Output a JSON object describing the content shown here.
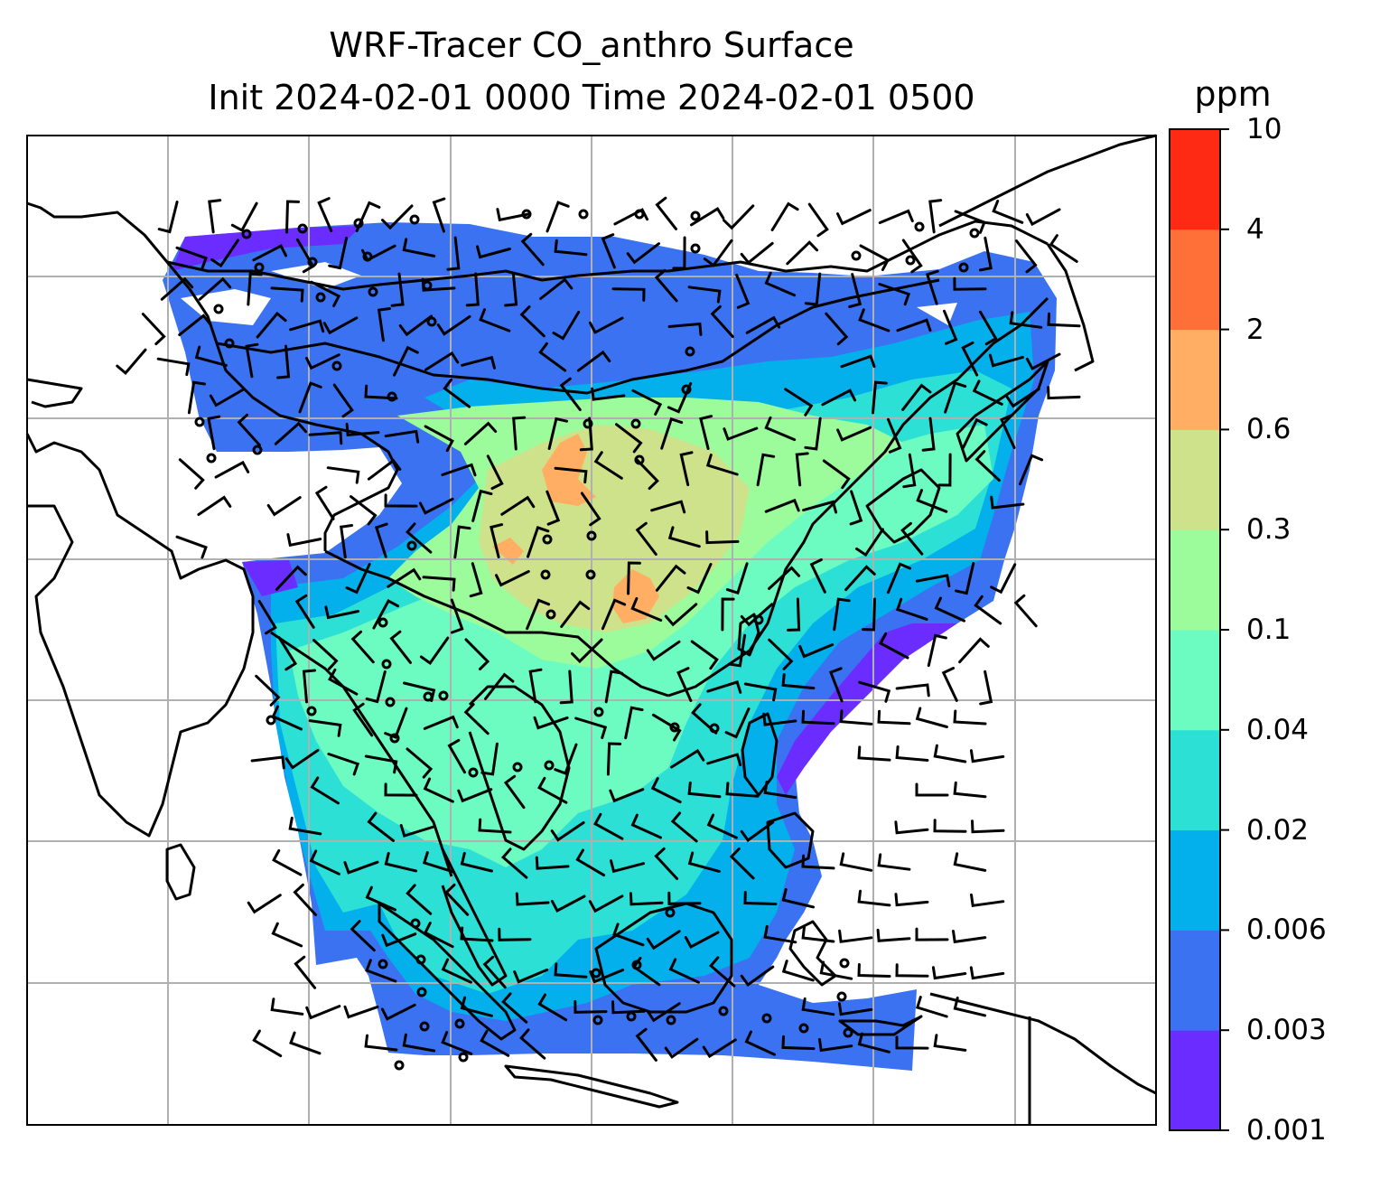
{
  "title": "WRF-Tracer CO_anthro Surface",
  "subtitle": "Init 2024-02-01 0000 Time 2024-02-01 0500",
  "colorbar": {
    "unit": "ppm",
    "levels": [
      "0.001",
      "0.003",
      "0.006",
      "0.02",
      "0.04",
      "0.1",
      "0.3",
      "0.6",
      "2",
      "4",
      "10"
    ],
    "colors": [
      "#6a2cff",
      "#3a72f2",
      "#03b0ec",
      "#2ce0d6",
      "#6cfcc2",
      "#9cfc9c",
      "#cde28a",
      "#ffae63",
      "#ff7038",
      "#ff2a14"
    ]
  },
  "map": {
    "field_colors": {
      "deep_violet": "#6a2cff",
      "blue": "#3a72f2",
      "sky": "#03b0ec",
      "teal": "#2ce0d6",
      "mint": "#6cfcc2",
      "light_green": "#9cfc9c",
      "olive": "#cde28a",
      "orange": "#ffae63"
    },
    "coastline_color": "#000000",
    "gridline_color": "#b0b0b0",
    "wind_barb_color": "#000000"
  }
}
